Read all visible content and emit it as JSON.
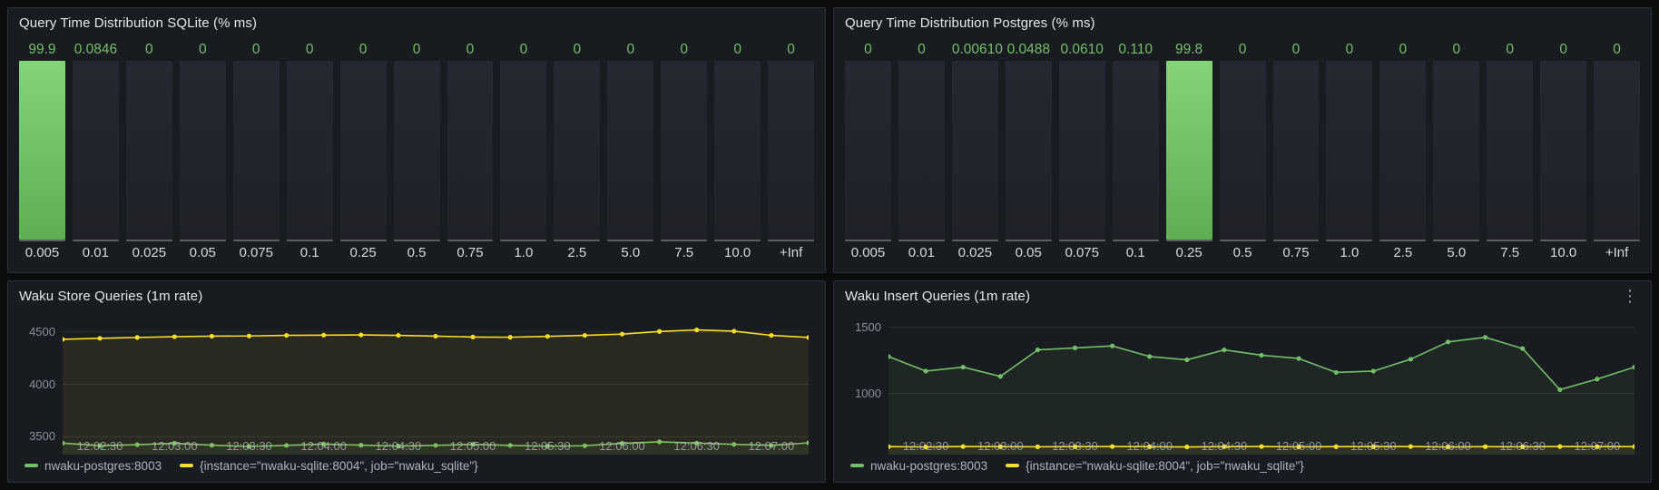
{
  "icons": {
    "panel_menu": "⋮"
  },
  "colors": {
    "green": "#73bf69",
    "yellow": "#fade2a",
    "panel_bg": "#181b1f",
    "page_bg": "#0b0c0e"
  },
  "chart_data": [
    {
      "id": "sqlite_histogram",
      "type": "bar",
      "title": "Query Time Distribution SQLite (% ms)",
      "categories": [
        "0.005",
        "0.01",
        "0.025",
        "0.05",
        "0.075",
        "0.1",
        "0.25",
        "0.5",
        "0.75",
        "1.0",
        "2.5",
        "5.0",
        "7.5",
        "10.0",
        "+Inf"
      ],
      "values": [
        99.9,
        0.0846,
        0,
        0,
        0,
        0,
        0,
        0,
        0,
        0,
        0,
        0,
        0,
        0,
        0
      ],
      "value_labels": [
        "99.9",
        "0.0846",
        "0",
        "0",
        "0",
        "0",
        "0",
        "0",
        "0",
        "0",
        "0",
        "0",
        "0",
        "0",
        "0"
      ],
      "ylim": [
        0,
        100
      ],
      "bar_color": "#73bf69"
    },
    {
      "id": "postgres_histogram",
      "type": "bar",
      "title": "Query Time Distribution Postgres (% ms)",
      "categories": [
        "0.005",
        "0.01",
        "0.025",
        "0.05",
        "0.075",
        "0.1",
        "0.25",
        "0.5",
        "0.75",
        "1.0",
        "2.5",
        "5.0",
        "7.5",
        "10.0",
        "+Inf"
      ],
      "values": [
        0,
        0,
        0.0061,
        0.0488,
        0.061,
        0.11,
        99.8,
        0,
        0,
        0,
        0,
        0,
        0,
        0,
        0
      ],
      "value_labels": [
        "0",
        "0",
        "0.00610",
        "0.0488",
        "0.0610",
        "0.110",
        "99.8",
        "0",
        "0",
        "0",
        "0",
        "0",
        "0",
        "0",
        "0"
      ],
      "ylim": [
        0,
        100
      ],
      "bar_color": "#73bf69"
    },
    {
      "id": "store_queries",
      "type": "line",
      "title": "Waku Store Queries (1m rate)",
      "x_tick_labels": [
        "12:02:30",
        "12:03:00",
        "12:03:30",
        "12:04:00",
        "12:04:30",
        "12:05:00",
        "12:05:30",
        "12:06:00",
        "12:06:30",
        "12:07:00"
      ],
      "x_tick_indices": [
        1,
        3,
        5,
        7,
        9,
        11,
        13,
        15,
        17,
        19
      ],
      "ylim": [
        3330,
        4620
      ],
      "yticks": [
        3500,
        4000,
        4500
      ],
      "grid": true,
      "legend_position": "bottom",
      "series": [
        {
          "name": "nwaku-postgres:8003",
          "color": "#73bf69",
          "values": [
            3440,
            3415,
            3425,
            3438,
            3420,
            3408,
            3418,
            3430,
            3420,
            3412,
            3418,
            3428,
            3418,
            3410,
            3415,
            3438,
            3452,
            3440,
            3428,
            3418,
            3442
          ]
        },
        {
          "name": "{instance=\"nwaku-sqlite:8004\", job=\"nwaku_sqlite\"}",
          "color": "#fade2a",
          "values": [
            4430,
            4440,
            4448,
            4455,
            4460,
            4462,
            4468,
            4470,
            4472,
            4468,
            4460,
            4452,
            4450,
            4458,
            4468,
            4480,
            4505,
            4520,
            4508,
            4468,
            4448
          ]
        }
      ]
    },
    {
      "id": "insert_queries",
      "type": "line",
      "title": "Waku Insert Queries (1m rate)",
      "has_menu": true,
      "x_tick_labels": [
        "12:02:30",
        "12:03:00",
        "12:03:30",
        "12:04:00",
        "12:04:30",
        "12:05:00",
        "12:05:30",
        "12:06:00",
        "12:06:30",
        "12:07:00"
      ],
      "x_tick_indices": [
        1,
        3,
        5,
        7,
        9,
        11,
        13,
        15,
        17,
        19
      ],
      "ylim": [
        540,
        1560
      ],
      "yticks": [
        1000,
        1500
      ],
      "grid": true,
      "legend_position": "bottom",
      "series": [
        {
          "name": "nwaku-postgres:8003",
          "color": "#73bf69",
          "values": [
            1280,
            1170,
            1200,
            1130,
            1330,
            1345,
            1360,
            1280,
            1255,
            1330,
            1290,
            1265,
            1160,
            1170,
            1260,
            1390,
            1425,
            1340,
            1030,
            1110,
            1200
          ]
        },
        {
          "name": "{instance=\"nwaku-sqlite:8004\", job=\"nwaku_sqlite\"}",
          "color": "#fade2a",
          "values": [
            600,
            598,
            601,
            600,
            599,
            600,
            601,
            600,
            598,
            600,
            601,
            599,
            600,
            600,
            601,
            598,
            600,
            599,
            601,
            600,
            600
          ]
        }
      ]
    }
  ]
}
